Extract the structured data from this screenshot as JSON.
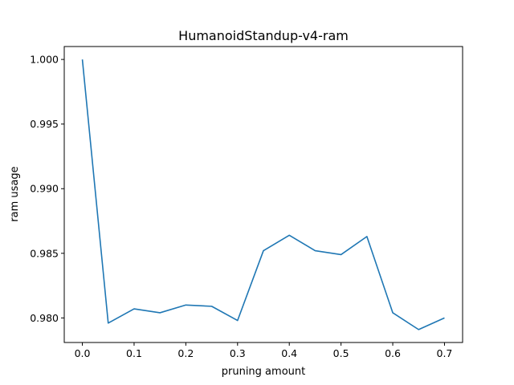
{
  "chart_data": {
    "type": "line",
    "title": "HumanoidStandup-v4-ram",
    "xlabel": "pruning amount",
    "ylabel": "ram usage",
    "xlim": [
      -0.035,
      0.735
    ],
    "ylim": [
      0.9781,
      1.001
    ],
    "xticks": [
      0.0,
      0.1,
      0.2,
      0.3,
      0.4,
      0.5,
      0.6,
      0.7
    ],
    "xtick_labels": [
      "0.0",
      "0.1",
      "0.2",
      "0.3",
      "0.4",
      "0.5",
      "0.6",
      "0.7"
    ],
    "yticks": [
      0.98,
      0.985,
      0.99,
      0.995,
      1.0
    ],
    "ytick_labels": [
      "0.980",
      "0.985",
      "0.990",
      "0.995",
      "1.000"
    ],
    "grid": false,
    "series": [
      {
        "color": "#1f77b4",
        "x": [
          0.0,
          0.05,
          0.1,
          0.15,
          0.2,
          0.25,
          0.3,
          0.35,
          0.4,
          0.45,
          0.5,
          0.55,
          0.6,
          0.65,
          0.7
        ],
        "y": [
          1.0,
          0.9796,
          0.9807,
          0.9804,
          0.981,
          0.9809,
          0.9798,
          0.9852,
          0.9864,
          0.9852,
          0.9849,
          0.9863,
          0.9804,
          0.9791,
          0.98
        ]
      }
    ]
  }
}
